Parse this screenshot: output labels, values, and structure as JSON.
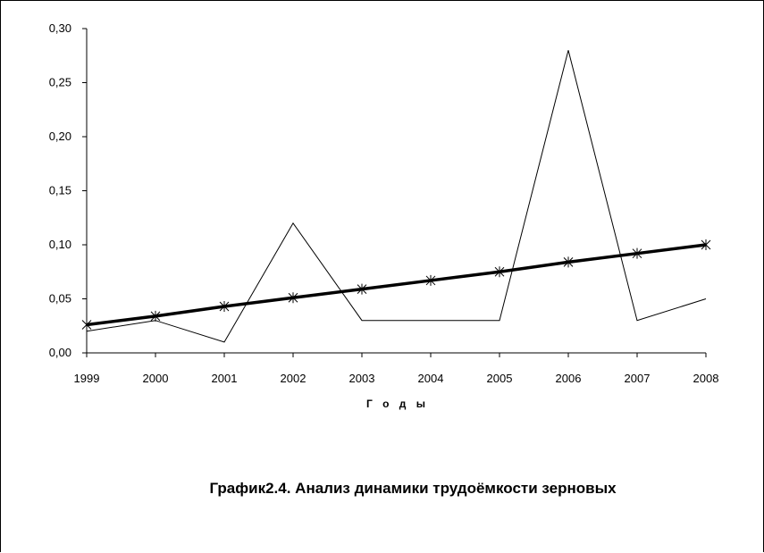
{
  "chart_data": {
    "type": "line",
    "categories": [
      "1999",
      "2000",
      "2001",
      "2002",
      "2003",
      "2004",
      "2005",
      "2006",
      "2007",
      "2008"
    ],
    "series": [
      {
        "style": "thin-line",
        "color": "#000000",
        "values": [
          0.02,
          0.03,
          0.01,
          0.12,
          0.03,
          0.03,
          0.03,
          0.28,
          0.03,
          0.05
        ]
      },
      {
        "style": "trend-line-with-star-markers",
        "color": "#000000",
        "values": [
          0.026,
          0.034,
          0.043,
          0.051,
          0.059,
          0.067,
          0.075,
          0.084,
          0.092,
          0.1
        ]
      }
    ],
    "y_ticks": [
      "0,00",
      "0,05",
      "0,10",
      "0,15",
      "0,20",
      "0,25",
      "0,30"
    ],
    "ylim": [
      0,
      0.3
    ],
    "xlabel": "Г о д ы",
    "ylabel": "",
    "grid": false,
    "legend": "none"
  },
  "caption": "График2.4. Анализ динамики трудоёмкости зерновых"
}
